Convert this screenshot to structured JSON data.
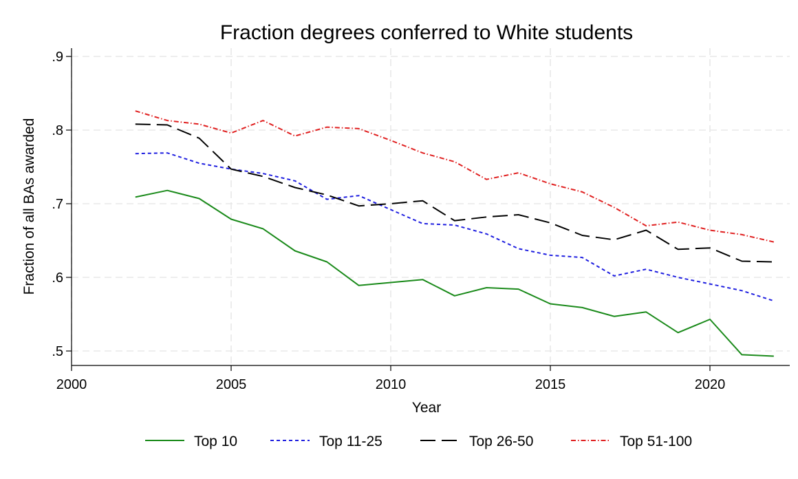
{
  "chart_data": {
    "type": "line",
    "title": "Fraction degrees conferred to White students",
    "xlabel": "Year",
    "ylabel": "Fraction of all BAs awarded",
    "xlim": [
      2000,
      2022.5
    ],
    "ylim": [
      0.49,
      0.91
    ],
    "x_ticks": [
      2000,
      2005,
      2010,
      2015,
      2020
    ],
    "x_tick_labels": [
      "2000",
      "2005",
      "2010",
      "2015",
      "2020"
    ],
    "y_ticks": [
      0.5,
      0.6,
      0.7,
      0.8,
      0.9
    ],
    "y_tick_labels": [
      ".5",
      ".6",
      ".7",
      ".8",
      ".9"
    ],
    "grid": true,
    "legend_position": "bottom",
    "x": [
      2002,
      2003,
      2004,
      2005,
      2006,
      2007,
      2008,
      2009,
      2010,
      2011,
      2012,
      2013,
      2014,
      2015,
      2016,
      2017,
      2018,
      2019,
      2020,
      2021,
      2022
    ],
    "series": [
      {
        "name": "Top 10",
        "color": "#1a8a1a",
        "dash": "solid",
        "values": [
          0.709,
          0.718,
          0.707,
          0.679,
          0.666,
          0.636,
          0.621,
          0.589,
          0.593,
          0.597,
          0.575,
          0.586,
          0.584,
          0.564,
          0.559,
          0.547,
          0.553,
          0.525,
          0.543,
          0.495,
          0.493
        ]
      },
      {
        "name": "Top 11-25",
        "color": "#1f1fe0",
        "dash": "short",
        "values": [
          0.768,
          0.769,
          0.755,
          0.747,
          0.741,
          0.731,
          0.706,
          0.711,
          0.692,
          0.673,
          0.671,
          0.659,
          0.639,
          0.63,
          0.627,
          0.602,
          0.611,
          0.6,
          0.591,
          0.582,
          0.568
        ]
      },
      {
        "name": "Top 26-50",
        "color": "#000000",
        "dash": "long",
        "values": [
          0.808,
          0.807,
          0.789,
          0.747,
          0.737,
          0.722,
          0.712,
          0.697,
          0.7,
          0.704,
          0.677,
          0.682,
          0.685,
          0.674,
          0.657,
          0.651,
          0.664,
          0.638,
          0.64,
          0.622,
          0.621
        ]
      },
      {
        "name": "Top 51-100",
        "color": "#e02020",
        "dash": "dashdot",
        "values": [
          0.826,
          0.813,
          0.808,
          0.796,
          0.813,
          0.792,
          0.804,
          0.802,
          0.786,
          0.769,
          0.757,
          0.733,
          0.742,
          0.727,
          0.716,
          0.695,
          0.67,
          0.675,
          0.664,
          0.658,
          0.648
        ]
      }
    ]
  }
}
